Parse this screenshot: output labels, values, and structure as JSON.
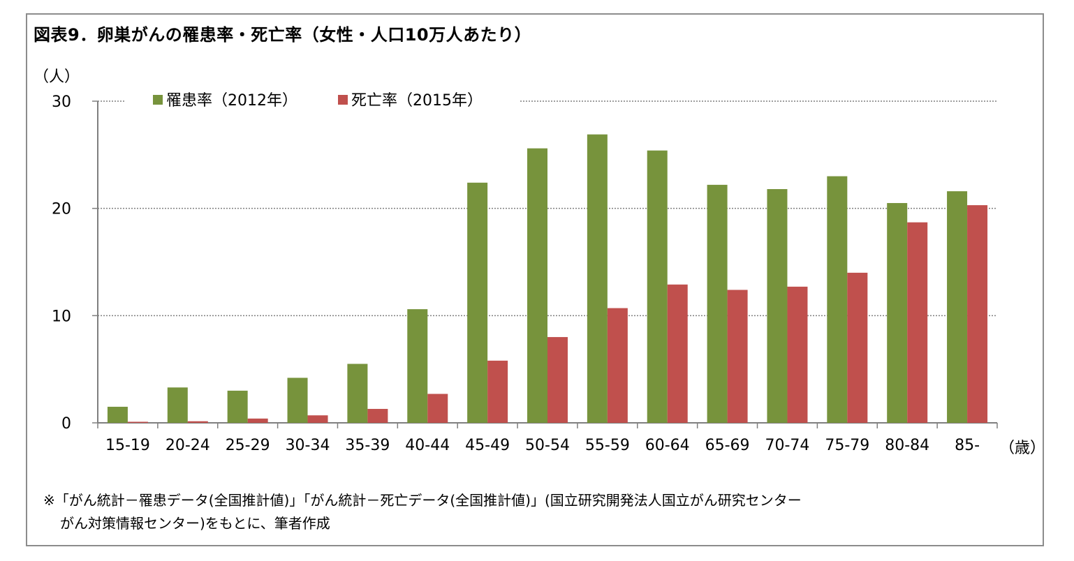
{
  "title": "図表9．卵巣がんの罹患率・死亡率（女性・人口10万人あたり）",
  "y_unit_label": "（人）",
  "x_unit_label": "（歳）",
  "note": {
    "line1": "※「がん統計－罹患データ(全国推計値)」「がん統計－死亡データ(全国推計値)」(国立研究開発法人国立がん研究センター",
    "line2": "がん対策情報センター)をもとに、筆者作成"
  },
  "colors": {
    "incidence": "#77933c",
    "mortality": "#c0504d",
    "grid": "#7f7f7f",
    "axis": "#7f7f7f"
  },
  "chart_data": {
    "type": "bar",
    "title": "卵巣がんの罹患率・死亡率（女性・人口10万人あたり）",
    "xlabel": "（歳）",
    "ylabel": "（人）",
    "ylim": [
      0,
      30
    ],
    "yticks": [
      0,
      10,
      20,
      30
    ],
    "grid": true,
    "legend_position": "top",
    "categories": [
      "15-19",
      "20-24",
      "25-29",
      "30-34",
      "35-39",
      "40-44",
      "45-49",
      "50-54",
      "55-59",
      "60-64",
      "65-69",
      "70-74",
      "75-79",
      "80-84",
      "85-"
    ],
    "series": [
      {
        "name": "罹患率（2012年）",
        "values": [
          1.5,
          3.3,
          3.0,
          4.2,
          5.5,
          10.6,
          22.4,
          25.6,
          26.9,
          25.4,
          22.2,
          21.8,
          23.0,
          20.5,
          21.6
        ]
      },
      {
        "name": "死亡率（2015年）",
        "values": [
          0.1,
          0.15,
          0.4,
          0.7,
          1.3,
          2.7,
          5.8,
          8.0,
          10.7,
          12.9,
          12.4,
          12.7,
          14.0,
          18.7,
          20.3
        ]
      }
    ]
  }
}
